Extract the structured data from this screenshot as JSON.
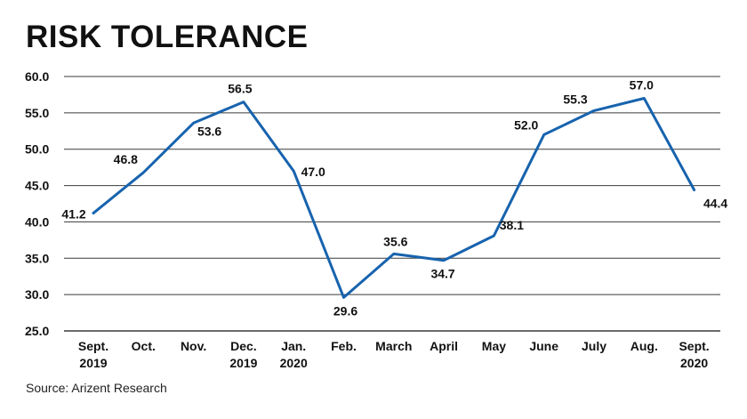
{
  "header": {
    "title": "RISK TOLERANCE"
  },
  "footer": {
    "source": "Source: Arizent Research"
  },
  "colors": {
    "line": "#1763ae",
    "grid": "#3a3a3a",
    "text": "#111111"
  },
  "chart_data": {
    "type": "line",
    "title": "RISK TOLERANCE",
    "xlabel": "",
    "ylabel": "",
    "ylim": [
      25.0,
      60.0
    ],
    "yticks": [
      "25.0",
      "30.0",
      "35.0",
      "40.0",
      "45.0",
      "50.0",
      "55.0",
      "60.0"
    ],
    "grid": true,
    "legend": "none",
    "categories": [
      [
        "Sept.",
        "2019"
      ],
      [
        "Oct."
      ],
      [
        "Nov."
      ],
      [
        "Dec.",
        "2019"
      ],
      [
        "Jan.",
        "2020"
      ],
      [
        "Feb."
      ],
      [
        "March"
      ],
      [
        "April"
      ],
      [
        "May"
      ],
      [
        "June"
      ],
      [
        "July"
      ],
      [
        "Aug."
      ],
      [
        "Sept.",
        "2020"
      ]
    ],
    "series": [
      {
        "values": [
          41.2,
          46.8,
          53.6,
          56.5,
          47.0,
          29.6,
          35.6,
          34.7,
          38.1,
          52.0,
          55.3,
          57.0,
          44.4
        ]
      }
    ],
    "data_labels": [
      "41.2",
      "46.8",
      "53.6",
      "56.5",
      "47.0",
      "29.6",
      "35.6",
      "34.7",
      "38.1",
      "52.0",
      "55.3",
      "57.0",
      "44.4"
    ]
  }
}
